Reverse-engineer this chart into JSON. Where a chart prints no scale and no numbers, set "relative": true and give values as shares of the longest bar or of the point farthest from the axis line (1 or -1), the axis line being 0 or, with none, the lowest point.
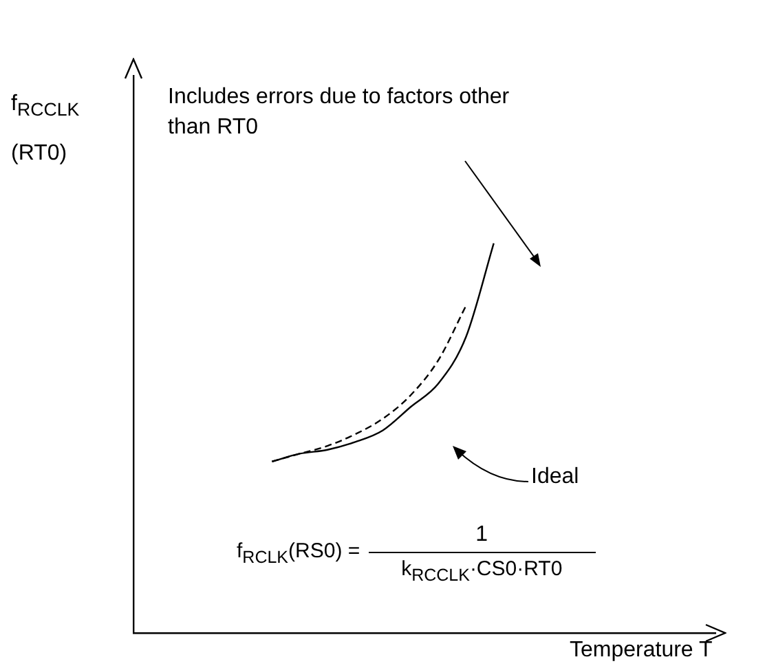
{
  "chart_data": {
    "type": "line",
    "relative": true,
    "xlabel": "Temperature T",
    "ylabel": "f$_{RCCLK}$\n(RT0)",
    "categories": [
      null,
      null,
      null,
      null,
      null,
      null,
      null,
      null,
      null,
      null,
      null,
      null,
      null,
      null,
      null,
      null,
      null,
      null,
      null,
      null,
      null,
      null
    ],
    "series": [
      {
        "color": "#000000",
        "line_style": "solid",
        "values": [
          null,
          null,
          null,
          null,
          null,
          0.44,
          0.46,
          0.47,
          0.49,
          0.52,
          0.58,
          0.64,
          0.76,
          1.0,
          null,
          null,
          null,
          null,
          null,
          null,
          null,
          null
        ]
      },
      {
        "color": "#000000",
        "line_style": "dashed",
        "values": [
          null,
          null,
          null,
          null,
          null,
          0.44,
          0.46,
          0.48,
          0.51,
          0.55,
          0.61,
          0.7,
          0.84,
          null,
          null,
          null,
          null,
          null,
          null,
          null,
          null,
          null
        ]
      }
    ],
    "annotations": [
      "Includes errors due to factors other than RT0",
      "Ideal",
      "f$_{RCLK}$(RS0) =",
      "1",
      "k$_{RCCLK}$·CS0·RT0"
    ],
    "grid": false,
    "marker": "none"
  }
}
